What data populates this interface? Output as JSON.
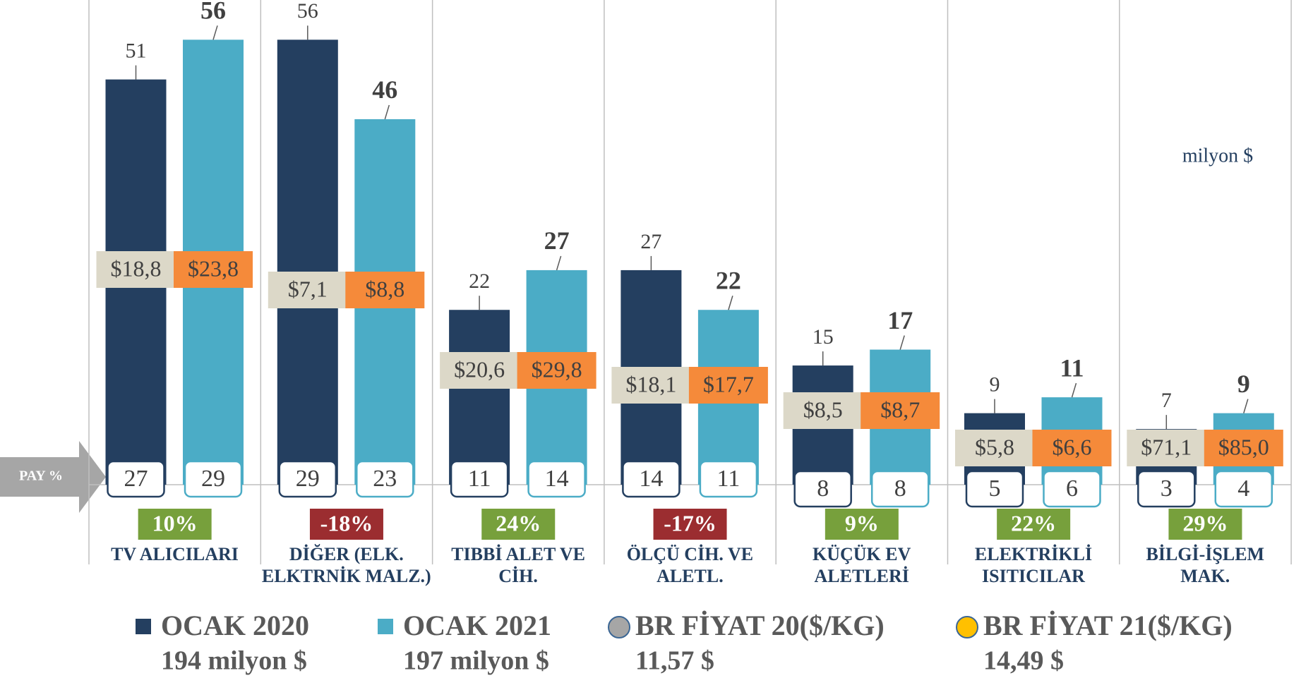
{
  "chart_data": {
    "type": "bar",
    "annotation": "milyon $",
    "axis_label": "PAY %",
    "categories": [
      "TV ALICILARI",
      "DİĞER (ELK. ELKTRNİK MALZ.)",
      "TIBBİ ALET VE CİH.",
      "ÖLÇÜ CİH. VE ALETL.",
      "KÜÇÜK EV ALETLERİ",
      "ELEKTRİKLİ ISITICILAR",
      "BİLGİ-İŞLEM MAK."
    ],
    "ylim": [
      0,
      61
    ],
    "series": [
      {
        "name": "OCAK 2020",
        "color": "#243f60",
        "total_label": "194 milyon $",
        "values": [
          51,
          56,
          22,
          27,
          15,
          9,
          7
        ],
        "share": [
          27,
          29,
          11,
          14,
          8,
          5,
          3
        ]
      },
      {
        "name": "OCAK 2021",
        "color": "#4bacc6",
        "total_label": "197 milyon $",
        "values": [
          56,
          46,
          27,
          22,
          17,
          11,
          9
        ],
        "share": [
          29,
          23,
          14,
          11,
          8,
          6,
          4
        ]
      }
    ],
    "prices": [
      {
        "name": "BR FİYAT 20($/KG)",
        "color": "#dcd8c8",
        "marker_color": "#a6a6a6",
        "average_label": "11,57 $",
        "values": [
          18.8,
          7.1,
          20.6,
          18.1,
          8.5,
          5.8,
          71.1
        ],
        "value_labels": [
          "$18,8",
          "$7,1",
          "$20,6",
          "$18,1",
          "$8,5",
          "$5,8",
          "$71,1"
        ]
      },
      {
        "name": "BR FİYAT 21($/KG)",
        "color": "#f58a3a",
        "marker_color": "#ffc000",
        "average_label": "14,49 $",
        "values": [
          23.8,
          8.8,
          29.8,
          17.7,
          8.7,
          6.6,
          85.0
        ],
        "value_labels": [
          "$23,8",
          "$8,8",
          "$29,8",
          "$17,7",
          "$8,7",
          "$6,6",
          "$85,0"
        ]
      }
    ],
    "change": {
      "positive_color": "#77a03c",
      "negative_color": "#9b2d30",
      "values": [
        10,
        -18,
        24,
        -17,
        9,
        22,
        29
      ],
      "value_labels": [
        "10%",
        "-18%",
        "24%",
        "-17%",
        "9%",
        "22%",
        "29%"
      ]
    }
  }
}
